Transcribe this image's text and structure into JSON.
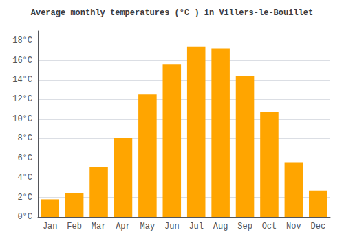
{
  "chart_data": {
    "type": "bar",
    "title": "Average monthly temperatures (°C ) in Villers-le-Bouillet",
    "categories": [
      "Jan",
      "Feb",
      "Mar",
      "Apr",
      "May",
      "Jun",
      "Jul",
      "Aug",
      "Sep",
      "Oct",
      "Nov",
      "Dec"
    ],
    "values": [
      1.8,
      2.4,
      5.1,
      8.1,
      12.5,
      15.6,
      17.4,
      17.2,
      14.4,
      10.7,
      5.6,
      2.7
    ],
    "color": "#FFA500",
    "ylim": [
      0,
      19
    ],
    "yticks": [
      {
        "value": 0,
        "label": "0°C"
      },
      {
        "value": 2,
        "label": "2°C"
      },
      {
        "value": 4,
        "label": "4°C"
      },
      {
        "value": 6,
        "label": "6°C"
      },
      {
        "value": 8,
        "label": "8°C"
      },
      {
        "value": 10,
        "label": "10°C"
      },
      {
        "value": 12,
        "label": "12°C"
      },
      {
        "value": 14,
        "label": "14°C"
      },
      {
        "value": 16,
        "label": "16°C"
      },
      {
        "value": 18,
        "label": "18°C"
      }
    ],
    "grid": true
  }
}
